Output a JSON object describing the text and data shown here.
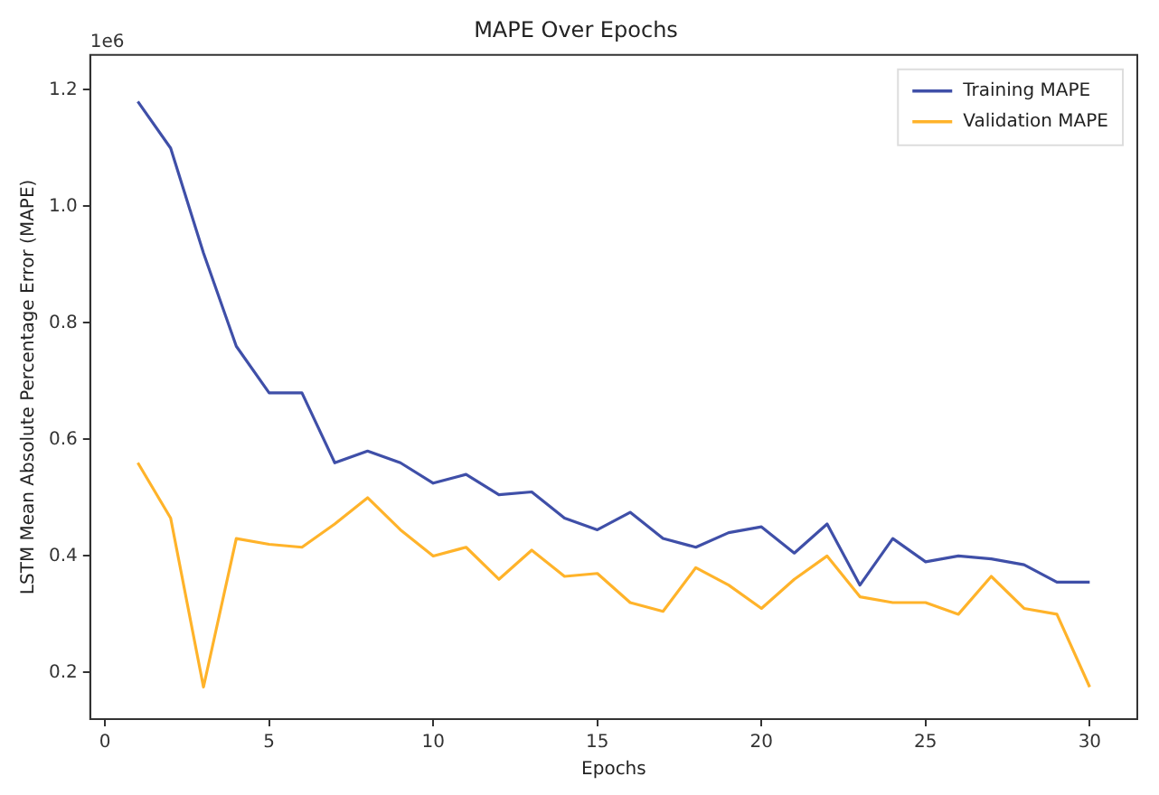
{
  "chart_data": {
    "type": "line",
    "title": "MAPE Over Epochs",
    "xlabel": "Epochs",
    "ylabel": "LSTM Mean Absolute Percentage Error (MAPE)",
    "annotations": [
      "1e6"
    ],
    "x": [
      1,
      2,
      3,
      4,
      5,
      6,
      7,
      8,
      9,
      10,
      11,
      12,
      13,
      14,
      15,
      16,
      17,
      18,
      19,
      20,
      21,
      22,
      23,
      24,
      25,
      26,
      27,
      28,
      29,
      30
    ],
    "series": [
      {
        "name": "Training MAPE",
        "color": "#3f4fa8",
        "values": [
          1.18,
          1.1,
          0.92,
          0.76,
          0.68,
          0.68,
          0.56,
          0.58,
          0.56,
          0.525,
          0.54,
          0.505,
          0.51,
          0.465,
          0.445,
          0.475,
          0.43,
          0.415,
          0.44,
          0.45,
          0.405,
          0.455,
          0.35,
          0.43,
          0.39,
          0.4,
          0.395,
          0.385,
          0.355,
          0.355
        ]
      },
      {
        "name": "Validation MAPE",
        "color": "#ffb32a",
        "values": [
          0.56,
          0.465,
          0.175,
          0.43,
          0.42,
          0.415,
          0.455,
          0.5,
          0.445,
          0.4,
          0.415,
          0.36,
          0.41,
          0.365,
          0.37,
          0.32,
          0.305,
          0.38,
          0.35,
          0.31,
          0.36,
          0.4,
          0.33,
          0.32,
          0.32,
          0.3,
          0.365,
          0.31,
          0.3,
          0.175
        ]
      }
    ],
    "xlim": [
      -0.45,
      31.45
    ],
    "xticks": [
      0,
      5,
      10,
      15,
      20,
      25,
      30
    ],
    "ylim": [
      0.12,
      1.26
    ],
    "yticks": [
      0.2,
      0.4,
      0.6,
      0.8,
      {
        "value": 1,
        "label": "1.0"
      },
      1.2
    ],
    "legend": "top right",
    "grid": false,
    "marker": "none",
    "line_style": "solid"
  }
}
